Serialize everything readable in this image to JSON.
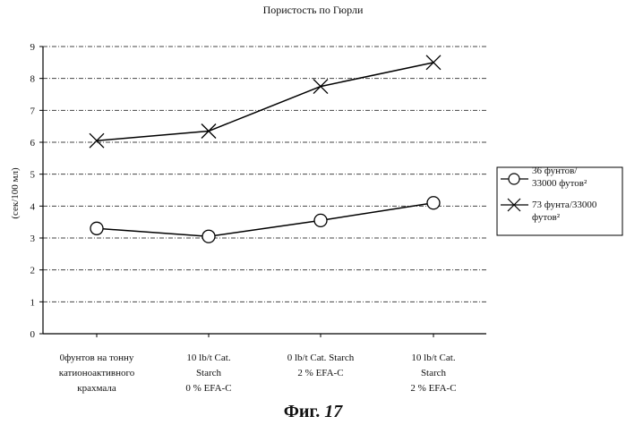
{
  "chart_data": {
    "type": "line",
    "title": "Пористость по Гюрли",
    "ylabel": "(сек/100 мл)",
    "xlabel": "",
    "ylim": [
      0,
      9
    ],
    "yticks": [
      "0",
      "1",
      "2",
      "3",
      "4",
      "5",
      "6",
      "7",
      "8",
      "9"
    ],
    "grid": true,
    "legend_position": "right",
    "categories": [
      [
        "0фунтов на тонну",
        "катионоактивного",
        "крахмала"
      ],
      [
        "10 lb/t Cat.",
        "Starch",
        "0 % EFA-C"
      ],
      [
        "0 lb/t Cat. Starch",
        "2 % EFA-C"
      ],
      [
        "10 lb/t Cat.",
        "Starch",
        "2 % EFA-C"
      ]
    ],
    "series": [
      {
        "name_lines": [
          "36 фунтов/",
          "33000 футов²"
        ],
        "marker": "circle",
        "values": [
          3.3,
          3.05,
          3.55,
          4.1
        ]
      },
      {
        "name_lines": [
          "73 фунта/33000",
          "футов²"
        ],
        "marker": "x",
        "values": [
          6.05,
          6.35,
          7.75,
          8.5
        ]
      }
    ]
  },
  "figure_caption": {
    "label": "Фиг.",
    "number": "17"
  }
}
